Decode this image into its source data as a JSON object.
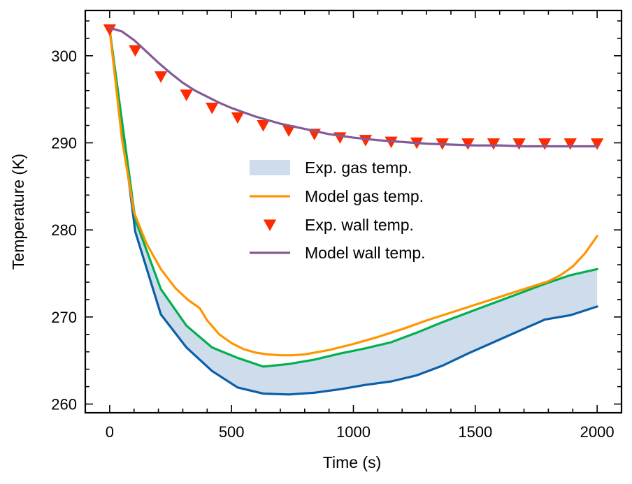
{
  "chart_data": {
    "type": "line",
    "title": "",
    "xlabel": "Time (s)",
    "ylabel": "Temperature (K)",
    "xlim": [
      -100,
      2100
    ],
    "ylim": [
      259,
      305.2
    ],
    "x_ticks": [
      0,
      500,
      1000,
      1500,
      2000
    ],
    "y_ticks": [
      260,
      270,
      280,
      290,
      300
    ],
    "legend_position": "center-right",
    "colors": {
      "band_fill": "#cfdcec",
      "band_lower": "#0a5fa8",
      "band_upper": "#00b050",
      "model_gas": "#ff9500",
      "exp_wall": "#ff2a00",
      "model_wall": "#845b97"
    },
    "exp_gas_band": {
      "name": "Exp. gas temp.",
      "x": [
        0,
        105,
        210,
        315,
        420,
        525,
        630,
        735,
        840,
        945,
        1050,
        1155,
        1260,
        1365,
        1470,
        1575,
        1680,
        1785,
        1890,
        2000
      ],
      "lower": [
        303,
        279.8,
        270.3,
        266.5,
        263.8,
        261.9,
        261.2,
        261.1,
        261.3,
        261.7,
        262.2,
        262.6,
        263.3,
        264.4,
        265.8,
        267.1,
        268.4,
        269.7,
        270.2,
        271.2
      ],
      "upper": [
        303,
        281.2,
        273.2,
        269.0,
        266.5,
        265.3,
        264.3,
        264.6,
        265.1,
        265.8,
        266.4,
        267.1,
        268.2,
        269.4,
        270.5,
        271.6,
        272.7,
        273.8,
        274.8,
        275.5
      ]
    },
    "series": [
      {
        "name": "Model gas temp.",
        "kind": "line",
        "x": [
          0,
          50,
          100,
          150,
          210,
          270,
          320,
          370,
          400,
          450,
          500,
          550,
          600,
          650,
          700,
          750,
          800,
          900,
          1000,
          1100,
          1200,
          1300,
          1400,
          1500,
          1600,
          1700,
          1800,
          1850,
          1900,
          1950,
          2000
        ],
        "y": [
          303,
          290.5,
          282.0,
          278.5,
          275.5,
          273.3,
          272.0,
          271.0,
          269.6,
          268.0,
          267.0,
          266.3,
          265.9,
          265.7,
          265.6,
          265.6,
          265.7,
          266.2,
          266.9,
          267.7,
          268.6,
          269.6,
          270.5,
          271.4,
          272.3,
          273.2,
          274.1,
          274.8,
          275.8,
          277.3,
          279.3
        ]
      },
      {
        "name": "Exp. wall temp.",
        "kind": "markers",
        "x": [
          0,
          105,
          210,
          315,
          420,
          525,
          630,
          735,
          840,
          945,
          1050,
          1155,
          1260,
          1365,
          1470,
          1575,
          1680,
          1785,
          1890,
          2000
        ],
        "y": [
          303.0,
          300.6,
          297.6,
          295.5,
          294.0,
          292.9,
          292.0,
          291.4,
          291.0,
          290.6,
          290.3,
          290.1,
          290.0,
          289.9,
          289.9,
          289.9,
          289.9,
          289.9,
          289.9,
          289.9
        ]
      },
      {
        "name": "Model wall temp.",
        "kind": "line",
        "x": [
          0,
          50,
          100,
          150,
          200,
          250,
          300,
          350,
          400,
          450,
          500,
          600,
          700,
          800,
          900,
          1000,
          1100,
          1200,
          1300,
          1400,
          1500,
          1600,
          1700,
          1800,
          1900,
          2000
        ],
        "y": [
          303.2,
          302.8,
          301.8,
          300.5,
          299.2,
          298.0,
          296.9,
          296.0,
          295.3,
          294.6,
          294.0,
          293.0,
          292.2,
          291.6,
          291.0,
          290.6,
          290.3,
          290.1,
          289.9,
          289.8,
          289.7,
          289.7,
          289.6,
          289.6,
          289.6,
          289.6
        ]
      }
    ]
  }
}
